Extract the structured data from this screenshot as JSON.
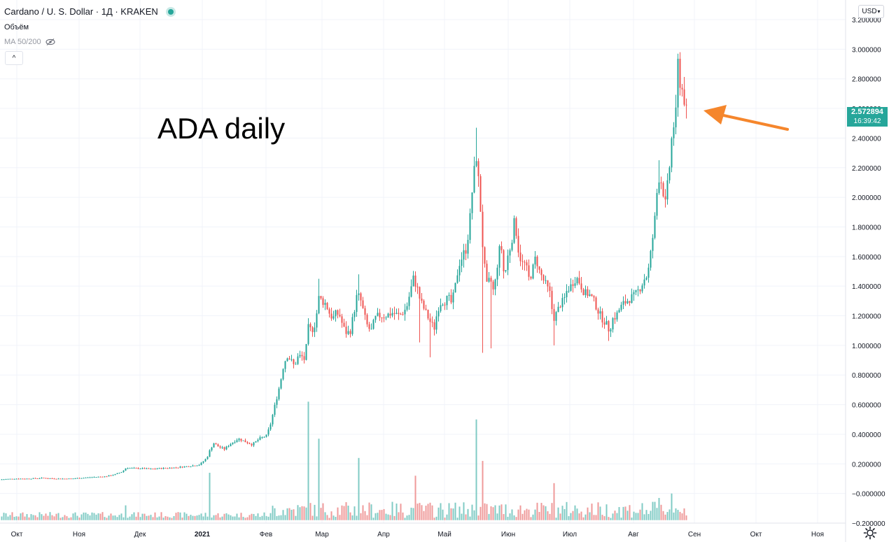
{
  "header": {
    "title": "Cardano / U. S. Dollar · 1Д · KRAKEN",
    "volume_label": "Объём",
    "ma_label": "MA 50/200"
  },
  "controls": {
    "currency": "USD",
    "currency_caret": "▾",
    "collapse_glyph": "^"
  },
  "price_tag": {
    "value": "2.572894",
    "timer": "16:39:42"
  },
  "annotation": "ADA daily",
  "colors": {
    "up": "#26a69a",
    "down": "#ef5350",
    "up_vol": "#80cbc4",
    "down_vol": "#ef9a9a",
    "arrow": "#f5862c"
  },
  "chart_data": {
    "type": "candlestick",
    "y_axis": {
      "ticks": [
        "3.200000",
        "3.000000",
        "2.800000",
        "2.600000",
        "2.400000",
        "2.200000",
        "2.000000",
        "1.800000",
        "1.600000",
        "1.400000",
        "1.200000",
        "1.000000",
        "0.800000",
        "0.600000",
        "0.400000",
        "0.200000",
        "−0.000000",
        "−0.200000"
      ],
      "range": [
        -0.2,
        3.2
      ]
    },
    "x_axis": {
      "labels": [
        "Окт",
        "Ноя",
        "Дек",
        "2021",
        "Фев",
        "Мар",
        "Апр",
        "Май",
        "Июн",
        "Июл",
        "Авг",
        "Сен",
        "Окт",
        "Ноя"
      ]
    },
    "series": [
      {
        "price_path": [
          [
            0,
            0.095
          ],
          [
            20,
            0.1
          ],
          [
            40,
            0.1
          ],
          [
            60,
            0.105
          ],
          [
            80,
            0.1
          ],
          [
            100,
            0.1
          ],
          [
            115,
            0.105
          ],
          [
            130,
            0.11
          ],
          [
            150,
            0.115
          ],
          [
            165,
            0.13
          ],
          [
            175,
            0.15
          ],
          [
            180,
            0.175
          ],
          [
            190,
            0.17
          ],
          [
            200,
            0.17
          ],
          [
            215,
            0.165
          ],
          [
            230,
            0.17
          ],
          [
            250,
            0.175
          ],
          [
            270,
            0.185
          ],
          [
            285,
            0.195
          ],
          [
            295,
            0.24
          ],
          [
            300,
            0.3
          ],
          [
            305,
            0.34
          ],
          [
            310,
            0.32
          ],
          [
            320,
            0.3
          ],
          [
            330,
            0.34
          ],
          [
            340,
            0.37
          ],
          [
            350,
            0.35
          ],
          [
            360,
            0.33
          ],
          [
            370,
            0.37
          ],
          [
            380,
            0.39
          ],
          [
            385,
            0.45
          ],
          [
            390,
            0.55
          ],
          [
            395,
            0.65
          ],
          [
            400,
            0.75
          ],
          [
            405,
            0.88
          ],
          [
            410,
            0.93
          ],
          [
            415,
            0.9
          ],
          [
            420,
            0.86
          ],
          [
            425,
            0.92
          ],
          [
            430,
            0.93
          ],
          [
            435,
            0.9
          ],
          [
            440,
            1.12
          ],
          [
            445,
            1.1
          ],
          [
            450,
            1.15
          ],
          [
            455,
            1.32
          ],
          [
            460,
            1.3
          ],
          [
            465,
            1.28
          ],
          [
            470,
            1.22
          ],
          [
            475,
            1.18
          ],
          [
            480,
            1.22
          ],
          [
            485,
            1.2
          ],
          [
            490,
            1.12
          ],
          [
            495,
            1.08
          ],
          [
            500,
            1.1
          ],
          [
            505,
            1.22
          ],
          [
            510,
            1.35
          ],
          [
            515,
            1.3
          ],
          [
            520,
            1.2
          ],
          [
            525,
            1.12
          ],
          [
            530,
            1.1
          ],
          [
            535,
            1.18
          ],
          [
            540,
            1.2
          ],
          [
            550,
            1.2
          ],
          [
            560,
            1.22
          ],
          [
            570,
            1.2
          ],
          [
            580,
            1.25
          ],
          [
            585,
            1.35
          ],
          [
            590,
            1.45
          ],
          [
            595,
            1.4
          ],
          [
            600,
            1.3
          ],
          [
            605,
            1.25
          ],
          [
            610,
            1.2
          ],
          [
            615,
            1.15
          ],
          [
            620,
            1.12
          ],
          [
            625,
            1.25
          ],
          [
            630,
            1.3
          ],
          [
            635,
            1.3
          ],
          [
            640,
            1.32
          ],
          [
            645,
            1.28
          ],
          [
            650,
            1.4
          ],
          [
            655,
            1.55
          ],
          [
            660,
            1.6
          ],
          [
            665,
            1.65
          ],
          [
            670,
            1.8
          ],
          [
            675,
            2.1
          ],
          [
            680,
            2.28
          ],
          [
            685,
            2.0
          ],
          [
            690,
            1.6
          ],
          [
            695,
            1.4
          ],
          [
            700,
            1.45
          ],
          [
            705,
            1.35
          ],
          [
            710,
            1.55
          ],
          [
            715,
            1.7
          ],
          [
            720,
            1.45
          ],
          [
            725,
            1.6
          ],
          [
            730,
            1.7
          ],
          [
            735,
            1.85
          ],
          [
            740,
            1.65
          ],
          [
            745,
            1.55
          ],
          [
            750,
            1.55
          ],
          [
            755,
            1.45
          ],
          [
            760,
            1.5
          ],
          [
            765,
            1.6
          ],
          [
            770,
            1.5
          ],
          [
            775,
            1.45
          ],
          [
            780,
            1.4
          ],
          [
            785,
            1.35
          ],
          [
            790,
            1.18
          ],
          [
            795,
            1.22
          ],
          [
            800,
            1.28
          ],
          [
            805,
            1.3
          ],
          [
            810,
            1.38
          ],
          [
            815,
            1.4
          ],
          [
            820,
            1.45
          ],
          [
            825,
            1.45
          ],
          [
            830,
            1.4
          ],
          [
            835,
            1.35
          ],
          [
            840,
            1.35
          ],
          [
            845,
            1.32
          ],
          [
            850,
            1.28
          ],
          [
            855,
            1.22
          ],
          [
            860,
            1.18
          ],
          [
            865,
            1.15
          ],
          [
            870,
            1.1
          ],
          [
            875,
            1.18
          ],
          [
            880,
            1.2
          ],
          [
            885,
            1.25
          ],
          [
            890,
            1.28
          ],
          [
            895,
            1.3
          ],
          [
            900,
            1.32
          ],
          [
            905,
            1.33
          ],
          [
            910,
            1.36
          ],
          [
            915,
            1.4
          ],
          [
            920,
            1.45
          ],
          [
            925,
            1.48
          ],
          [
            930,
            1.65
          ],
          [
            935,
            1.85
          ],
          [
            940,
            2.15
          ],
          [
            945,
            2.1
          ],
          [
            950,
            1.95
          ],
          [
            955,
            2.15
          ],
          [
            960,
            2.45
          ],
          [
            965,
            2.55
          ],
          [
            968,
            2.9
          ],
          [
            972,
            2.75
          ],
          [
            976,
            2.7
          ],
          [
            980,
            2.57
          ]
        ],
        "high_spikes": [
          [
            455,
            1.45
          ],
          [
            512,
            1.48
          ],
          [
            593,
            1.5
          ],
          [
            681,
            2.47
          ],
          [
            735,
            1.87
          ],
          [
            942,
            2.25
          ],
          [
            968,
            2.97
          ]
        ],
        "low_spikes": [
          [
            690,
            0.95
          ],
          [
            700,
            0.98
          ],
          [
            790,
            1.0
          ],
          [
            615,
            0.92
          ],
          [
            870,
            1.03
          ],
          [
            600,
            1.02
          ]
        ],
        "volume_spikes": [
          [
            180,
            0.1
          ],
          [
            300,
            0.32
          ],
          [
            440,
            0.8
          ],
          [
            455,
            0.55
          ],
          [
            512,
            0.42
          ],
          [
            593,
            0.3
          ],
          [
            681,
            0.68
          ],
          [
            690,
            0.4
          ],
          [
            790,
            0.25
          ],
          [
            942,
            0.15
          ],
          [
            960,
            0.18
          ]
        ]
      }
    ],
    "last_price": 2.572894
  }
}
